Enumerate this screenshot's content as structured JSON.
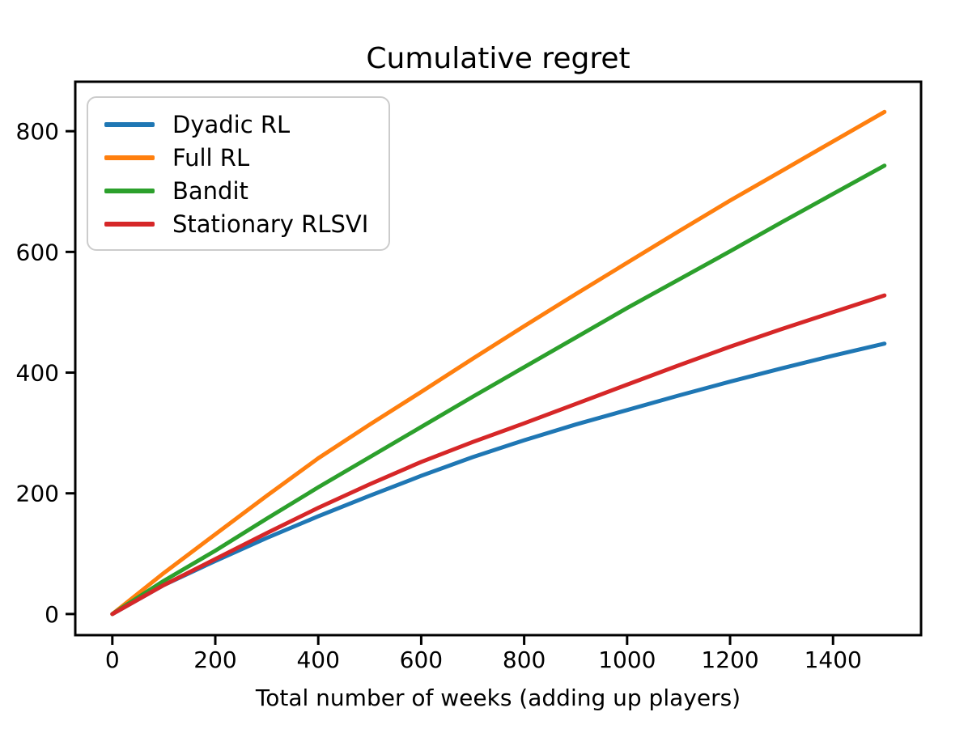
{
  "chart_data": {
    "type": "line",
    "title": "Cumulative regret",
    "xlabel": "Total number of weeks (adding up players)",
    "ylabel": "",
    "x_ticks": [
      0,
      200,
      400,
      600,
      800,
      1000,
      1200,
      1400
    ],
    "y_ticks": [
      0,
      200,
      400,
      600,
      800
    ],
    "xlim": [
      -72,
      1571
    ],
    "ylim": [
      -35,
      882
    ],
    "grid": false,
    "legend_position": "upper left",
    "axis_color": "#000000",
    "x": [
      0,
      100,
      200,
      300,
      400,
      500,
      600,
      700,
      800,
      900,
      1000,
      1100,
      1200,
      1300,
      1400,
      1500
    ],
    "series": [
      {
        "name": "Dyadic RL",
        "color": "#1f77b4",
        "values": [
          0,
          48,
          88,
          126,
          162,
          196,
          229,
          260,
          288,
          314,
          338,
          362,
          385,
          407,
          428,
          448
        ]
      },
      {
        "name": "Full RL",
        "color": "#ff7f0e",
        "values": [
          0,
          68,
          132,
          196,
          258,
          314,
          368,
          423,
          477,
          530,
          582,
          634,
          685,
          734,
          783,
          832
        ]
      },
      {
        "name": "Bandit",
        "color": "#2ca02c",
        "values": [
          0,
          55,
          105,
          158,
          210,
          260,
          310,
          360,
          409,
          458,
          507,
          554,
          601,
          649,
          696,
          743
        ]
      },
      {
        "name": "Stationary RLSVI",
        "color": "#d62728",
        "values": [
          0,
          48,
          91,
          134,
          176,
          215,
          252,
          285,
          316,
          348,
          380,
          412,
          443,
          472,
          500,
          528
        ]
      }
    ]
  }
}
